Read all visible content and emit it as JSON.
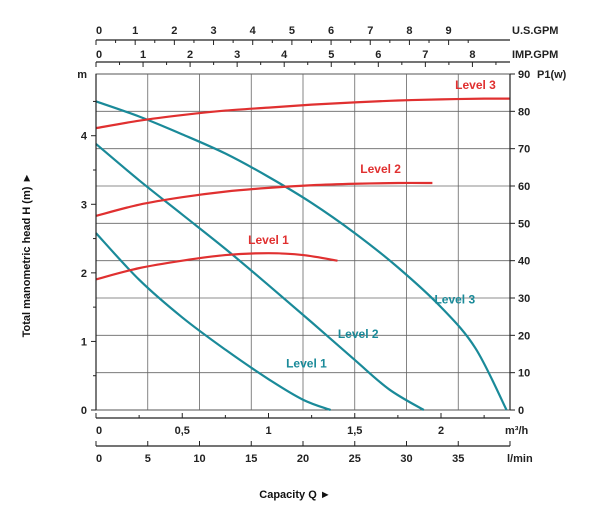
{
  "chart_data": {
    "type": "line",
    "title": "",
    "xlabel": "Capacity Q",
    "xlabel_marker": "►",
    "ylabel": "Total manometric head H (m)",
    "ylabel_marker": "►",
    "grid": true,
    "y_head": {
      "unit": "m",
      "range": [
        0,
        4.9
      ],
      "ticks": [
        0,
        1,
        2,
        3,
        4
      ]
    },
    "y_power": {
      "unit": "P1(w)",
      "range": [
        0,
        90
      ],
      "ticks": [
        0,
        10,
        20,
        30,
        40,
        50,
        60,
        70,
        80,
        90
      ]
    },
    "x_m3h": {
      "unit": "m³/h",
      "range": [
        0,
        2.4
      ],
      "ticks": [
        0,
        0.5,
        1,
        1.5,
        2
      ],
      "tick_labels": [
        "0",
        "0,5",
        "1",
        "1,5",
        "2"
      ]
    },
    "x_lmin": {
      "unit": "l/min",
      "ticks": [
        0,
        5,
        10,
        15,
        20,
        25,
        30,
        35
      ],
      "tick_labels": [
        "0",
        "5",
        "10",
        "15",
        "20",
        "25",
        "30",
        "35"
      ]
    },
    "x_usgpm": {
      "unit": "U.S.GPM",
      "ticks": [
        0,
        1,
        2,
        3,
        4,
        5,
        6,
        7,
        8,
        9
      ],
      "tick_labels": [
        "0",
        "1",
        "2",
        "3",
        "4",
        "5",
        "6",
        "7",
        "8",
        "9"
      ]
    },
    "x_impgpm": {
      "unit": "IMP.GPM",
      "ticks": [
        0,
        1,
        2,
        3,
        4,
        5,
        6,
        7,
        8
      ],
      "tick_labels": [
        "0",
        "1",
        "2",
        "3",
        "4",
        "5",
        "6",
        "7",
        "8"
      ]
    },
    "head_series": [
      {
        "name": "Level 1",
        "color": "#1a8a99",
        "x": [
          0,
          0.25,
          0.5,
          0.75,
          1.0,
          1.2,
          1.36
        ],
        "y": [
          2.58,
          1.9,
          1.35,
          0.88,
          0.45,
          0.15,
          0.0
        ]
      },
      {
        "name": "Level 2",
        "color": "#1a8a99",
        "x": [
          0,
          0.25,
          0.5,
          0.75,
          1.0,
          1.25,
          1.5,
          1.7,
          1.9
        ],
        "y": [
          3.88,
          3.35,
          2.85,
          2.35,
          1.82,
          1.28,
          0.73,
          0.3,
          0.0
        ]
      },
      {
        "name": "Level 3",
        "color": "#1a8a99",
        "x": [
          0,
          0.25,
          0.5,
          0.75,
          1.0,
          1.25,
          1.5,
          1.75,
          2.0,
          2.2,
          2.38
        ],
        "y": [
          4.5,
          4.28,
          4.02,
          3.74,
          3.4,
          3.02,
          2.58,
          2.08,
          1.5,
          0.9,
          0.0
        ]
      }
    ],
    "power_series": [
      {
        "name": "Level 1",
        "color": "#e03030",
        "x": [
          0,
          0.25,
          0.5,
          0.75,
          1.0,
          1.2,
          1.4
        ],
        "y": [
          35,
          38,
          40,
          41.5,
          42,
          41.5,
          40
        ]
      },
      {
        "name": "Level 2",
        "color": "#e03030",
        "x": [
          0,
          0.25,
          0.5,
          0.75,
          1.0,
          1.25,
          1.5,
          1.75,
          1.95
        ],
        "y": [
          52,
          55,
          57,
          58.5,
          59.5,
          60.2,
          60.6,
          60.8,
          60.8
        ]
      },
      {
        "name": "Level 3",
        "color": "#e03030",
        "x": [
          0,
          0.25,
          0.5,
          0.75,
          1.0,
          1.25,
          1.5,
          1.75,
          2.0,
          2.25,
          2.4
        ],
        "y": [
          75.5,
          77.5,
          79,
          80.2,
          81,
          81.8,
          82.4,
          82.9,
          83.2,
          83.4,
          83.4
        ]
      }
    ]
  }
}
